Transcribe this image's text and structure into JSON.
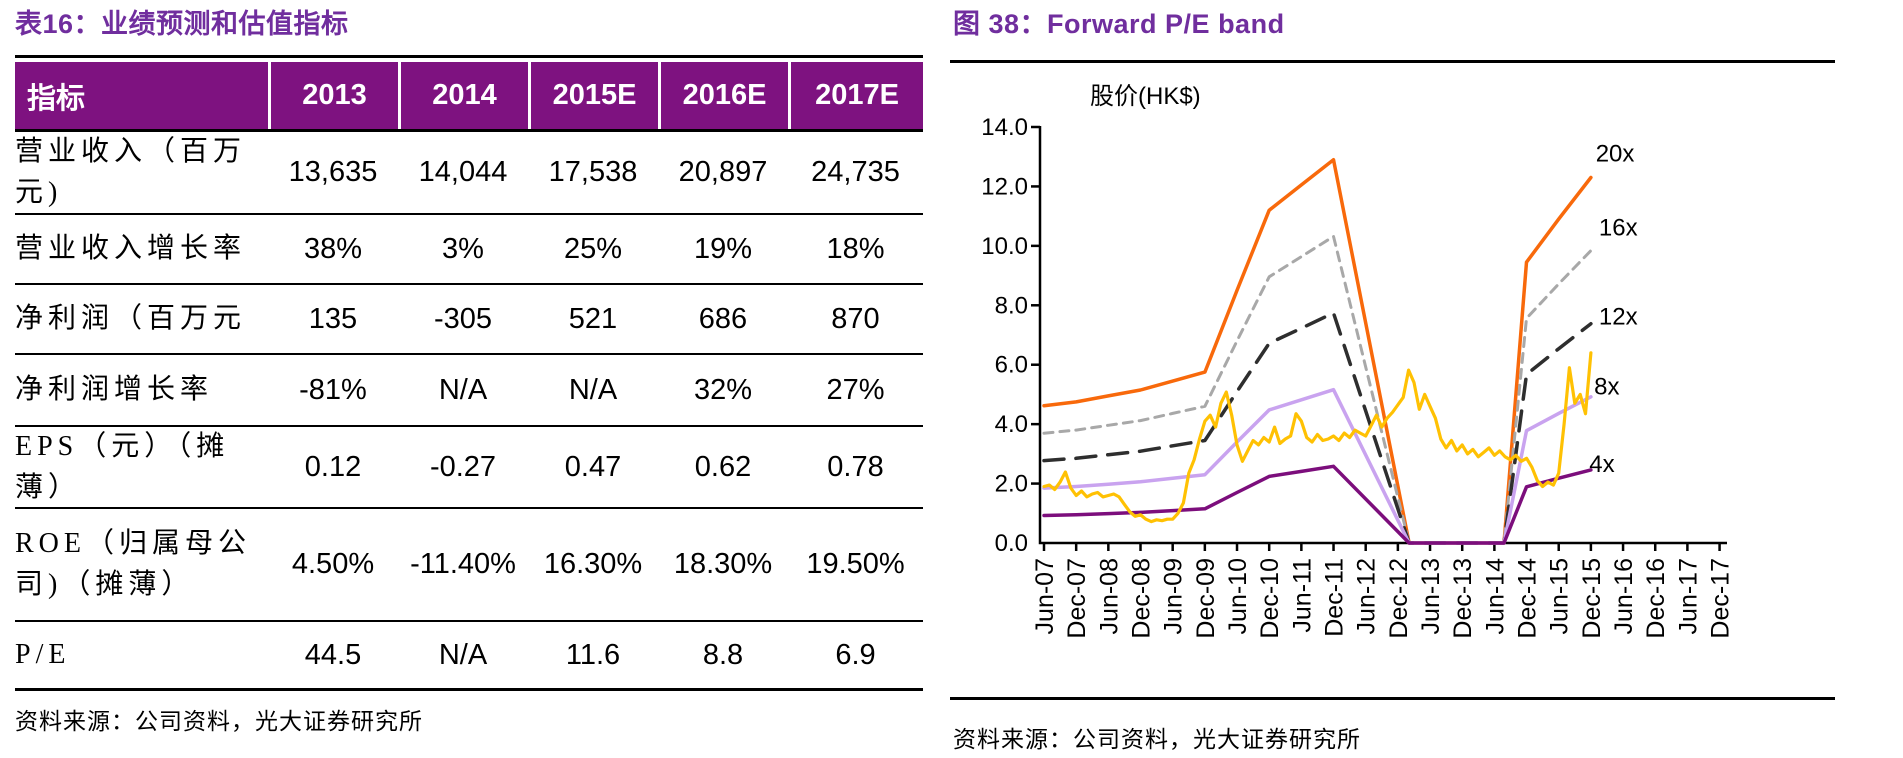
{
  "left": {
    "title": "表16：业绩预测和估值指标",
    "source": "资料来源：公司资料，光大证券研究所",
    "table": {
      "columns": [
        "指标",
        "2013",
        "2014",
        "2015E",
        "2016E",
        "2017E"
      ],
      "rows": [
        {
          "label": "营业收入（百万元)",
          "values": [
            "13,635",
            "14,044",
            "17,538",
            "20,897",
            "24,735"
          ]
        },
        {
          "label": "营业收入增长率",
          "values": [
            "38%",
            "3%",
            "25%",
            "19%",
            "18%"
          ]
        },
        {
          "label": "净利润（百万元",
          "values": [
            "135",
            "-305",
            "521",
            "686",
            "870"
          ]
        },
        {
          "label": "净利润增长率",
          "values": [
            "-81%",
            "N/A",
            "N/A",
            "32%",
            "27%"
          ]
        },
        {
          "label": "EPS（元）（摊薄）",
          "values": [
            "0.12",
            "-0.27",
            "0.47",
            "0.62",
            "0.78"
          ]
        },
        {
          "label": "ROE（归属母公司)（摊薄）",
          "values": [
            "4.50%",
            "-11.40%",
            "16.30%",
            "18.30%",
            "19.50%"
          ]
        },
        {
          "label": "P/E",
          "values": [
            "44.5",
            "N/A",
            "11.6",
            "8.8",
            "6.9"
          ]
        }
      ]
    }
  },
  "right": {
    "title": "图 38：Forward P/E band",
    "source": "资料来源：公司资料，光大证券研究所"
  },
  "colors": {
    "title_purple": "#702E9E",
    "header_purple": "#7E1280",
    "band_20x": "#F8690B",
    "band_16x": "#A8A8A8",
    "band_12x": "#2E2E2E",
    "band_8x": "#C9A3EF",
    "band_4x": "#7C0E7C",
    "price": "#FFC103",
    "axis": "#000000"
  },
  "chart_data": {
    "type": "line",
    "title": "Forward P/E band",
    "ylabel": "股价(HK$)",
    "xlabel": "",
    "grid": false,
    "legend_position": "labels-at-line-ends",
    "ylim": [
      0,
      14
    ],
    "y_ticks": [
      0,
      2,
      4,
      6,
      8,
      10,
      12,
      14
    ],
    "y_tick_labels": [
      "0.0",
      "2.0",
      "4.0",
      "6.0",
      "8.0",
      "10.0",
      "12.0",
      "14.0"
    ],
    "x_tick_labels": [
      "Jun-07",
      "Dec-07",
      "Jun-08",
      "Dec-08",
      "Jun-09",
      "Dec-09",
      "Jun-10",
      "Dec-10",
      "Jun-11",
      "Dec-11",
      "Jun-12",
      "Dec-12",
      "Jun-13",
      "Dec-13",
      "Jun-14",
      "Dec-14",
      "Jun-15",
      "Dec-15",
      "Jun-16",
      "Dec-16",
      "Jun-17",
      "Dec-17"
    ],
    "pe_multiples": [
      20,
      16,
      12,
      8,
      4
    ],
    "band_line_styles": {
      "20x": {
        "dash": null,
        "width": 3.5
      },
      "16x": {
        "dash": "9,7",
        "width": 3.0
      },
      "12x": {
        "dash": "20,12",
        "width": 3.5
      },
      "8x": {
        "dash": null,
        "width": 3.5
      },
      "4x": {
        "dash": null,
        "width": 3.5
      }
    },
    "forward_eps_path_halfyears": [
      [
        0,
        0.231
      ],
      [
        1,
        0.2375
      ],
      [
        2,
        0.2475
      ],
      [
        3,
        0.2575
      ],
      [
        4,
        0.2725
      ],
      [
        5,
        0.2875
      ],
      [
        6,
        0.425
      ],
      [
        7,
        0.56
      ],
      [
        8,
        0.6025
      ],
      [
        9,
        0.645
      ],
      [
        11.35,
        0
      ],
      [
        14.3,
        0
      ],
      [
        15,
        0.4725
      ],
      [
        16,
        0.545
      ],
      [
        17,
        0.615
      ]
    ],
    "price_series": {
      "name": "股价",
      "x_start_halfyear": 0,
      "x_step_halfyear": 0.166667,
      "values": [
        1.9,
        1.95,
        1.8,
        2.05,
        2.39,
        1.85,
        1.6,
        1.75,
        1.55,
        1.65,
        1.7,
        1.55,
        1.6,
        1.65,
        1.55,
        1.3,
        1.05,
        0.9,
        0.95,
        0.8,
        0.72,
        0.78,
        0.75,
        0.8,
        0.8,
        1.0,
        1.35,
        2.35,
        2.8,
        3.5,
        4.1,
        4.3,
        3.9,
        4.7,
        5.08,
        4.3,
        3.3,
        2.75,
        3.1,
        3.45,
        3.3,
        3.55,
        3.4,
        3.9,
        3.35,
        3.5,
        3.6,
        4.35,
        4.1,
        3.55,
        3.4,
        3.65,
        3.45,
        3.5,
        3.6,
        3.45,
        3.7,
        3.55,
        3.8,
        3.7,
        3.6,
        3.95,
        4.3,
        3.9,
        4.2,
        4.4,
        4.65,
        4.9,
        5.82,
        5.4,
        4.5,
        5.0,
        4.6,
        4.2,
        3.5,
        3.2,
        3.45,
        3.1,
        3.3,
        3.0,
        3.15,
        2.9,
        3.05,
        3.2,
        2.95,
        3.1,
        2.9,
        2.8,
        2.95,
        2.75,
        2.85,
        2.55,
        2.1,
        1.9,
        2.05,
        1.95,
        2.35,
        4.0,
        5.9,
        4.7,
        5.0,
        4.35,
        6.4
      ]
    },
    "band_labels": [
      {
        "text": "20x",
        "x": 17.15,
        "y": 13.15
      },
      {
        "text": "16x",
        "x": 17.25,
        "y": 10.65
      },
      {
        "text": "12x",
        "x": 17.25,
        "y": 7.65
      },
      {
        "text": "8x",
        "x": 17.1,
        "y": 5.3
      },
      {
        "text": "4x",
        "x": 16.95,
        "y": 2.7
      }
    ]
  }
}
